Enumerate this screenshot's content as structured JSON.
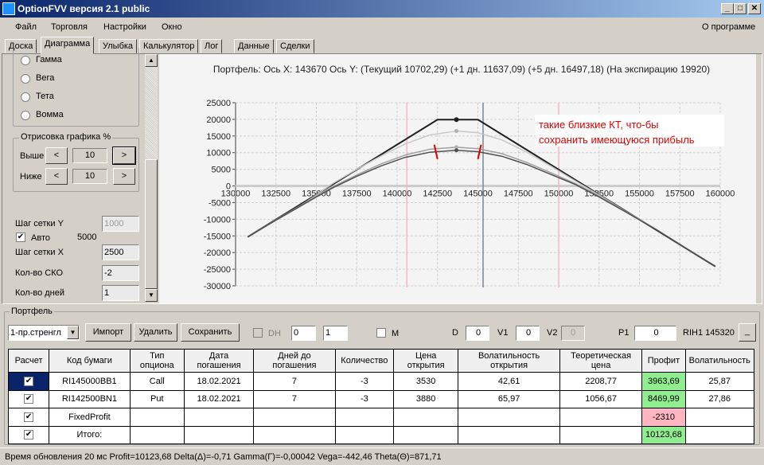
{
  "window": {
    "title": "OptionFVV версия 2.1 public",
    "min": "_",
    "max": "□",
    "close": "✕"
  },
  "menu": {
    "items": [
      "Файл",
      "Торговля",
      "Настройки",
      "Окно"
    ],
    "about": "О программе"
  },
  "tabs": [
    "Доска",
    "Диаграмма",
    "Улыбка",
    "Калькулятор",
    "Лог",
    "Данные",
    "Сделки"
  ],
  "active_tab": "Диаграмма",
  "left": {
    "radios": [
      "Гамма",
      "Вега",
      "Тета",
      "Вомма"
    ],
    "draw_group": "Отрисовка графика %",
    "above_label": "Выше",
    "above_value": "10",
    "below_label": "Ниже",
    "below_value": "10",
    "prev": "<",
    "next": ">",
    "grid_y_label": "Шаг сетки Y",
    "grid_y_value": "1000",
    "auto_label": "Авто",
    "auto_checked": true,
    "auto_value": "5000",
    "grid_x_label": "Шаг сетки X",
    "grid_x_value": "2500",
    "sko_label": "Кол-во СКО",
    "sko_value": "-2",
    "days_label": "Кол-во дней",
    "days_value": "1"
  },
  "chart_data": {
    "type": "line",
    "title": "Портфель: Ось X: 143670 Ось Y:  (Текущий 10702,29)  (+1 дн. 11637,09)  (+5 дн. 16497,18)  (На экспирацию 19920)",
    "xlim": [
      130000,
      160000
    ],
    "ylim": [
      -30000,
      25000
    ],
    "xticks": [
      "130000",
      "132500",
      "135000",
      "137500",
      "140000",
      "142500",
      "145000",
      "147500",
      "150000",
      "152500",
      "155000",
      "157500",
      "160000"
    ],
    "yticks": [
      "25000",
      "20000",
      "15000",
      "10000",
      "5000",
      "0",
      "-5000",
      "-10000",
      "-15000",
      "-20000",
      "-25000",
      "-30000"
    ],
    "grid": true,
    "vlines": [
      {
        "x": 140600,
        "color": "#f4b6c2"
      },
      {
        "x": 145320,
        "color": "#7a8590"
      },
      {
        "x": 150000,
        "color": "#f4b6c2"
      }
    ],
    "series": [
      {
        "key": "expiration",
        "color": "#202020",
        "points": [
          [
            130750,
            -15330
          ],
          [
            142500,
            19920
          ],
          [
            145000,
            19920
          ],
          [
            159700,
            -24180
          ]
        ]
      },
      {
        "key": "plus5",
        "color": "#c8c8c8",
        "points": [
          [
            134000,
            -6000
          ],
          [
            135000,
            -2700
          ],
          [
            136000,
            700
          ],
          [
            137500,
            5000
          ],
          [
            139000,
            9000
          ],
          [
            140500,
            12600
          ],
          [
            142000,
            15300
          ],
          [
            143670,
            16497
          ],
          [
            145000,
            16000
          ],
          [
            146500,
            13800
          ],
          [
            148000,
            10200
          ],
          [
            149500,
            6000
          ],
          [
            151000,
            1600
          ],
          [
            152500,
            -2700
          ],
          [
            154000,
            -7200
          ]
        ]
      },
      {
        "key": "plus1",
        "color": "#a0a0a0",
        "points": [
          [
            130750,
            -15300
          ],
          [
            132500,
            -10200
          ],
          [
            134000,
            -5900
          ],
          [
            135000,
            -3000
          ],
          [
            136000,
            -300
          ],
          [
            137500,
            3300
          ],
          [
            139000,
            6600
          ],
          [
            140500,
            9300
          ],
          [
            142000,
            11000
          ],
          [
            143670,
            11637
          ],
          [
            145000,
            11200
          ],
          [
            146500,
            9700
          ],
          [
            148000,
            7100
          ],
          [
            149500,
            4000
          ],
          [
            151000,
            800
          ],
          [
            152500,
            -3000
          ],
          [
            154000,
            -7200
          ],
          [
            156000,
            -12900
          ],
          [
            158000,
            -19000
          ],
          [
            159700,
            -24100
          ]
        ]
      },
      {
        "key": "current",
        "color": "#505050",
        "points": [
          [
            130750,
            -15300
          ],
          [
            132500,
            -10300
          ],
          [
            134000,
            -6100
          ],
          [
            135000,
            -3300
          ],
          [
            136000,
            -600
          ],
          [
            137500,
            2900
          ],
          [
            139000,
            6000
          ],
          [
            140500,
            8600
          ],
          [
            142000,
            10100
          ],
          [
            143670,
            10702
          ],
          [
            145000,
            10300
          ],
          [
            146500,
            8900
          ],
          [
            148000,
            6500
          ],
          [
            149500,
            3500
          ],
          [
            151000,
            500
          ],
          [
            152500,
            -3300
          ],
          [
            154000,
            -7400
          ],
          [
            156000,
            -13000
          ],
          [
            158000,
            -19100
          ],
          [
            159700,
            -24150
          ]
        ]
      }
    ],
    "markers": [
      [
        143670,
        19920
      ],
      [
        143670,
        16497
      ],
      [
        143670,
        11637
      ],
      [
        143670,
        10702
      ]
    ],
    "annotation": [
      "такие близкие КТ, что-бы",
      "сохранить имеющуюся прибыль"
    ],
    "annotation_color": "#e00000",
    "red_marks": [
      142400,
      145100
    ]
  },
  "portfolio": {
    "label": "Портфель",
    "strategy": "1-пр.стренгл",
    "import": "Импорт",
    "delete": "Удалить",
    "save": "Сохранить",
    "dh": "DH",
    "spin1": "0",
    "spin2": "1",
    "m": "M",
    "d_label": "D",
    "d": "0",
    "v1_label": "V1",
    "v1": "0",
    "v2_label": "V2",
    "v2": "0",
    "p1_label": "P1",
    "p1": "0",
    "instrument": "RIH1 145320",
    "small_btn": "_",
    "columns": [
      "Расчет",
      "Код бумаги",
      "Тип опциона",
      "Дата погашения",
      "Дней до погашения",
      "Количество",
      "Цена открытия",
      "Волатильность открытия",
      "Теоретическая цена",
      "Профит",
      "Волатильность"
    ],
    "rows": [
      [
        "RI145000BB1",
        "Call",
        "18.02.2021",
        "7",
        "-3",
        "3530",
        "42,61",
        "2208,77",
        "3963,69",
        "25,87"
      ],
      [
        "RI142500BN1",
        "Put",
        "18.02.2021",
        "7",
        "-3",
        "3880",
        "65,97",
        "1056,67",
        "8469,99",
        "27,86"
      ],
      [
        "FixedProfit",
        "",
        "",
        "",
        "",
        "",
        "",
        "",
        "-2310",
        ""
      ],
      [
        "Итого:",
        "",
        "",
        "",
        "",
        "",
        "",
        "",
        "10123,68",
        ""
      ]
    ]
  },
  "status": "Время обновления 20 мс  Profit=10123,68 Delta(Δ)=-0,71 Gamma(Γ)=-0,00042 Vega=-442,46 Theta(Θ)=871,71"
}
